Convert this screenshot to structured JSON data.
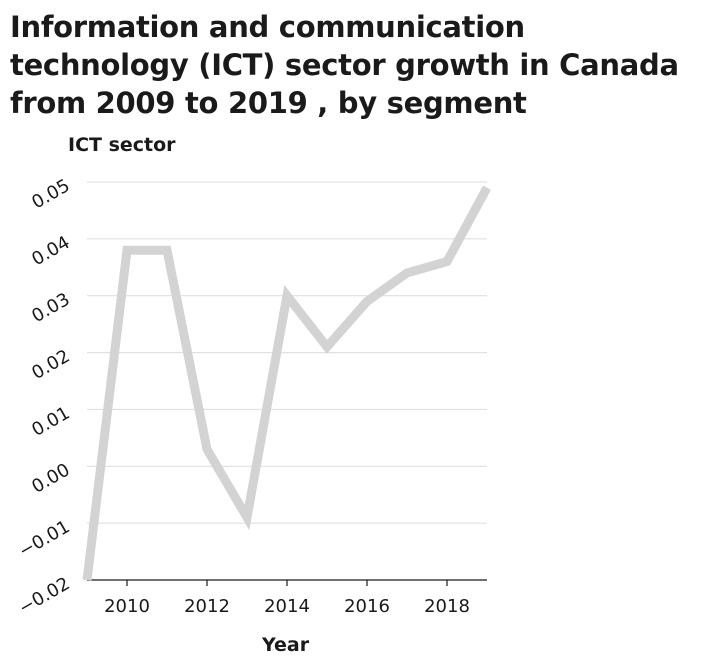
{
  "chart_data": {
    "type": "line",
    "title": "Information and communication technology (ICT) sector growth in Canada from 2009 to 2019 , by segment",
    "ylabel": "ICT sector",
    "xlabel": "Year",
    "x": [
      2009,
      2010,
      2011,
      2012,
      2013,
      2014,
      2015,
      2016,
      2017,
      2018,
      2019
    ],
    "series": [
      {
        "values": [
          -0.02,
          0.038,
          0.038,
          0.003,
          -0.009,
          0.03,
          0.021,
          0.029,
          0.034,
          0.036,
          0.049
        ]
      }
    ],
    "xlim": [
      2009,
      2019
    ],
    "ylim": [
      -0.02,
      0.05
    ],
    "xticks": [
      2010,
      2012,
      2014,
      2016,
      2018
    ],
    "xtick_labels": [
      "2010",
      "2012",
      "2014",
      "2016",
      "2018"
    ],
    "yticks": [
      -0.02,
      -0.01,
      0.0,
      0.01,
      0.02,
      0.03,
      0.04,
      0.05
    ],
    "ytick_labels": [
      "−0.02",
      "−0.01",
      "0.00",
      "0.01",
      "0.02",
      "0.03",
      "0.04",
      "0.05"
    ],
    "grid": true,
    "colors": {
      "line": "#d3d3d3",
      "grid": "#dcdcdc",
      "axis": "#1a1a1a",
      "text": "#1a1a1a"
    }
  }
}
